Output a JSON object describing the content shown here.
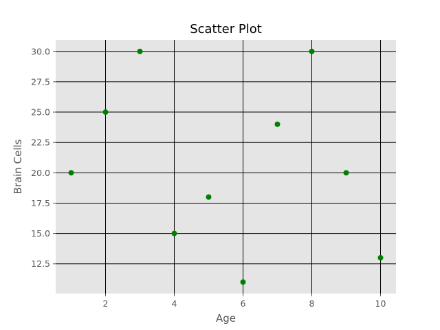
{
  "chart_data": {
    "type": "scatter",
    "title": "Scatter Plot",
    "xlabel": "Age",
    "ylabel": "Brain Cells",
    "x": [
      1,
      2,
      3,
      4,
      5,
      6,
      7,
      8,
      9,
      10
    ],
    "y": [
      20,
      25,
      30,
      15,
      18,
      11,
      24,
      30,
      20,
      13
    ],
    "xlim": [
      0.55,
      10.45
    ],
    "ylim": [
      10.05,
      30.95
    ],
    "xticks": [
      2,
      4,
      6,
      8,
      10
    ],
    "xtick_labels": [
      "2",
      "4",
      "6",
      "8",
      "10"
    ],
    "yticks": [
      12.5,
      15,
      17.5,
      20,
      22.5,
      25,
      27.5,
      30
    ],
    "ytick_labels": [
      "12.5",
      "15.0",
      "17.5",
      "20.0",
      "22.5",
      "25.0",
      "27.5",
      "30.0"
    ],
    "grid": true,
    "marker_color": "#008000",
    "plot_background": "#e5e5e5",
    "grid_color": "#000000"
  }
}
